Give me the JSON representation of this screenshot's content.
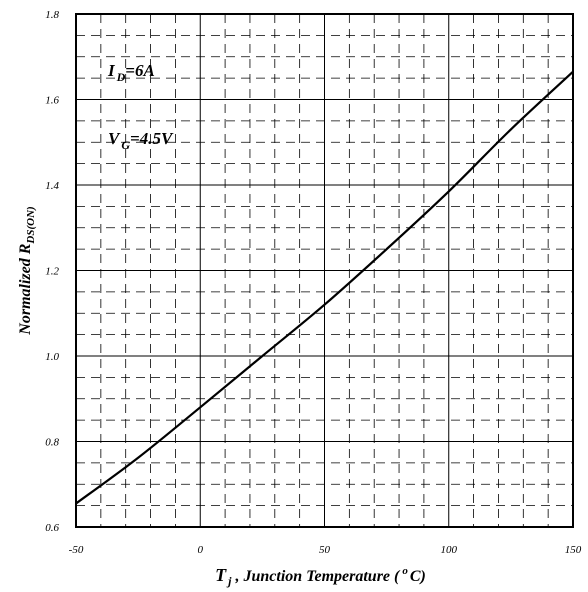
{
  "chart_data": {
    "type": "line",
    "xlabel": {
      "main": "T",
      "sub": "j",
      "rest_before_sup": " , Junction Temperature (",
      "sup": "o",
      "rest_after_sup": "C)"
    },
    "ylabel": {
      "main": "Normalized R",
      "sub": "DS(ON)"
    },
    "xlim": [
      -50,
      150
    ],
    "ylim": [
      0.6,
      1.8
    ],
    "x_ticks": [
      -50,
      0,
      50,
      100,
      150
    ],
    "x_tick_labels": [
      "-50",
      "0",
      "50",
      "100",
      "150"
    ],
    "y_ticks": [
      0.6,
      0.8,
      1.0,
      1.2,
      1.4,
      1.6,
      1.8
    ],
    "y_tick_labels": [
      "0.6",
      "0.8",
      "1.0",
      "1.2",
      "1.4",
      "1.6",
      "1.8"
    ],
    "grid": "major solid, minor dashed",
    "annotations": [
      {
        "main": "I",
        "sub": "D",
        "rest": "=6A"
      },
      {
        "main": "V",
        "sub": "G",
        "rest": "=4.5V"
      }
    ],
    "series": [
      {
        "x": [
          -50,
          -25,
          0,
          25,
          50,
          75,
          100,
          125,
          150
        ],
        "y": [
          0.655,
          0.762,
          0.88,
          1.0,
          1.12,
          1.25,
          1.385,
          1.53,
          1.665
        ]
      }
    ]
  }
}
